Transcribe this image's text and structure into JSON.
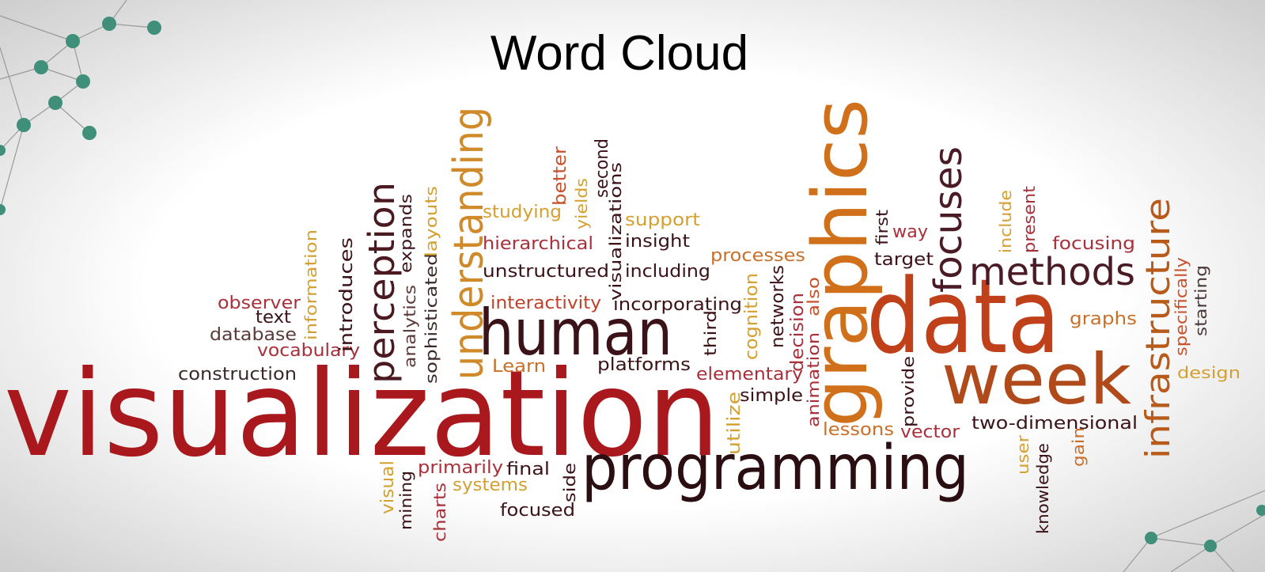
{
  "title": "Word Cloud",
  "words": [
    "visualization",
    "programming",
    "human",
    "data",
    "week",
    "graphics",
    "understanding",
    "perception",
    "focuses",
    "methods",
    "infrastructure",
    "construction",
    "observer",
    "text",
    "database",
    "vocabulary",
    "information",
    "introduces",
    "expands",
    "analytics",
    "sophisticated",
    "layouts",
    "studying",
    "hierarchical",
    "unstructured",
    "interactivity",
    "Learn",
    "better",
    "yields",
    "second",
    "visualizations",
    "support",
    "insight",
    "including",
    "incorporating",
    "platforms",
    "processes",
    "third",
    "cognition",
    "networks",
    "decision",
    "also",
    "animation",
    "elementary",
    "simple",
    "utilize",
    "lessons",
    "vector",
    "provide",
    "first",
    "way",
    "target",
    "include",
    "present",
    "focusing",
    "graphs",
    "specifically",
    "starting",
    "design",
    "two-dimensional",
    "user",
    "knowledge",
    "gain",
    "visual",
    "mining",
    "charts",
    "primarily",
    "systems",
    "final",
    "focused",
    "side"
  ]
}
